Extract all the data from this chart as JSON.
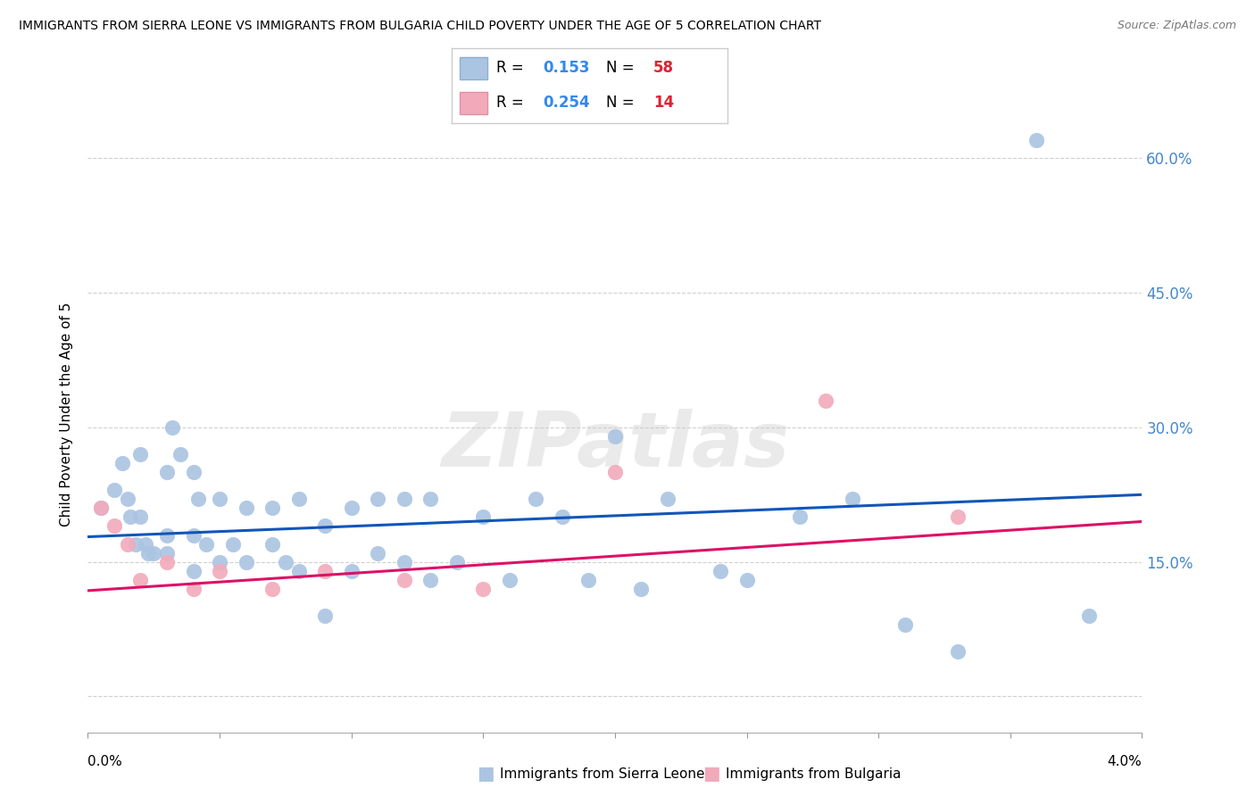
{
  "title": "IMMIGRANTS FROM SIERRA LEONE VS IMMIGRANTS FROM BULGARIA CHILD POVERTY UNDER THE AGE OF 5 CORRELATION CHART",
  "source": "Source: ZipAtlas.com",
  "ylabel": "Child Poverty Under the Age of 5",
  "yticks": [
    0.0,
    0.15,
    0.3,
    0.45,
    0.6
  ],
  "ytick_labels": [
    "",
    "15.0%",
    "30.0%",
    "45.0%",
    "60.0%"
  ],
  "xmin": 0.0,
  "xmax": 0.04,
  "ymin": -0.04,
  "ymax": 0.67,
  "sierra_leone_color": "#aac4e2",
  "bulgaria_color": "#f2aabb",
  "trend_sierra_color": "#1155bb",
  "trend_bulgaria_color": "#dd1166",
  "legend_sierra_R": "0.153",
  "legend_sierra_N": "58",
  "legend_bulgaria_R": "0.254",
  "legend_bulgaria_N": "14",
  "sierra_leone_x": [
    0.0005,
    0.001,
    0.0013,
    0.0015,
    0.0016,
    0.0018,
    0.002,
    0.002,
    0.0022,
    0.0023,
    0.0025,
    0.003,
    0.003,
    0.003,
    0.0032,
    0.0035,
    0.004,
    0.004,
    0.004,
    0.0042,
    0.0045,
    0.005,
    0.005,
    0.0055,
    0.006,
    0.006,
    0.007,
    0.007,
    0.0075,
    0.008,
    0.008,
    0.009,
    0.009,
    0.01,
    0.01,
    0.011,
    0.011,
    0.012,
    0.012,
    0.013,
    0.013,
    0.014,
    0.015,
    0.016,
    0.017,
    0.018,
    0.019,
    0.02,
    0.021,
    0.022,
    0.024,
    0.025,
    0.027,
    0.029,
    0.031,
    0.033,
    0.036,
    0.038
  ],
  "sierra_leone_y": [
    0.21,
    0.23,
    0.26,
    0.22,
    0.2,
    0.17,
    0.27,
    0.2,
    0.17,
    0.16,
    0.16,
    0.25,
    0.18,
    0.16,
    0.3,
    0.27,
    0.25,
    0.18,
    0.14,
    0.22,
    0.17,
    0.22,
    0.15,
    0.17,
    0.21,
    0.15,
    0.21,
    0.17,
    0.15,
    0.22,
    0.14,
    0.19,
    0.09,
    0.21,
    0.14,
    0.22,
    0.16,
    0.22,
    0.15,
    0.22,
    0.13,
    0.15,
    0.2,
    0.13,
    0.22,
    0.2,
    0.13,
    0.29,
    0.12,
    0.22,
    0.14,
    0.13,
    0.2,
    0.22,
    0.08,
    0.05,
    0.62,
    0.09
  ],
  "bulgaria_x": [
    0.0005,
    0.001,
    0.0015,
    0.002,
    0.003,
    0.004,
    0.005,
    0.007,
    0.009,
    0.012,
    0.015,
    0.02,
    0.028,
    0.033
  ],
  "bulgaria_y": [
    0.21,
    0.19,
    0.17,
    0.13,
    0.15,
    0.12,
    0.14,
    0.12,
    0.14,
    0.13,
    0.12,
    0.25,
    0.33,
    0.2
  ],
  "trend_sl_x0": 0.0,
  "trend_sl_y0": 0.178,
  "trend_sl_x1": 0.04,
  "trend_sl_y1": 0.225,
  "trend_bg_x0": 0.0,
  "trend_bg_y0": 0.118,
  "trend_bg_x1": 0.04,
  "trend_bg_y1": 0.195,
  "background_color": "#ffffff",
  "grid_color": "#d0d0d0",
  "watermark": "ZIPatlas",
  "watermark_color": "#cccccc",
  "watermark_alpha": 0.4
}
